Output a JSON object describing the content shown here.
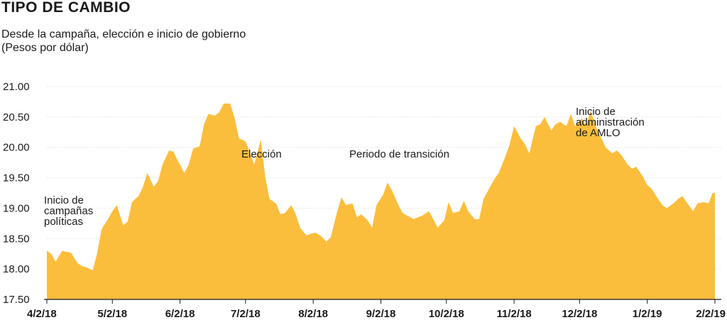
{
  "title": "TIPO DE CAMBIO",
  "subtitle_line1": "Desde la campaña, elección e inicio de gobierno",
  "subtitle_line2": "(Pesos por dólar)",
  "fill_color": "#fbbd3c",
  "chart_data": {
    "type": "area",
    "title": "TIPO DE CAMBIO",
    "subtitle": "Desde la campaña, elección e inicio de gobierno",
    "ylabel": "(Pesos por dólar)",
    "ylim": [
      17.5,
      21.0
    ],
    "grid": true,
    "y_ticks": [
      "21.00",
      "20.50",
      "20.00",
      "19.50",
      "19.00",
      "18.50",
      "18.00",
      "17.50"
    ],
    "x_ticks": [
      "4/2/18",
      "5/2/18",
      "6/2/18",
      "7/2/18",
      "8/2/18",
      "9/2/18",
      "10/2/18",
      "11/2/18",
      "12/2/18",
      "1/2/19",
      "2/2/19"
    ],
    "annotations": [
      {
        "lines": [
          "Inicio de",
          "campañas",
          "políticas"
        ],
        "x": "4/2/18"
      },
      {
        "lines": [
          "Elección"
        ],
        "x": "7/1/18"
      },
      {
        "lines": [
          "Periodo de transición"
        ],
        "x": "9/1/18"
      },
      {
        "lines": [
          "Inicio de",
          "administración",
          "de AMLO"
        ],
        "x": "12/1/18"
      }
    ],
    "x": [
      "2018-04-02",
      "2018-04-04",
      "2018-04-06",
      "2018-04-09",
      "2018-04-11",
      "2018-04-13",
      "2018-04-16",
      "2018-04-18",
      "2018-04-20",
      "2018-04-23",
      "2018-04-25",
      "2018-04-27",
      "2018-04-30",
      "2018-05-02",
      "2018-05-04",
      "2018-05-07",
      "2018-05-09",
      "2018-05-11",
      "2018-05-14",
      "2018-05-16",
      "2018-05-18",
      "2018-05-21",
      "2018-05-23",
      "2018-05-25",
      "2018-05-28",
      "2018-05-30",
      "2018-06-01",
      "2018-06-04",
      "2018-06-06",
      "2018-06-08",
      "2018-06-11",
      "2018-06-13",
      "2018-06-15",
      "2018-06-18",
      "2018-06-20",
      "2018-06-22",
      "2018-06-25",
      "2018-06-27",
      "2018-06-29",
      "2018-07-02",
      "2018-07-04",
      "2018-07-06",
      "2018-07-09",
      "2018-07-11",
      "2018-07-13",
      "2018-07-16",
      "2018-07-18",
      "2018-07-20",
      "2018-07-23",
      "2018-07-25",
      "2018-07-27",
      "2018-07-30",
      "2018-08-01",
      "2018-08-03",
      "2018-08-06",
      "2018-08-08",
      "2018-08-10",
      "2018-08-13",
      "2018-08-15",
      "2018-08-17",
      "2018-08-20",
      "2018-08-22",
      "2018-08-24",
      "2018-08-27",
      "2018-08-29",
      "2018-08-31",
      "2018-09-03",
      "2018-09-05",
      "2018-09-07",
      "2018-09-10",
      "2018-09-12",
      "2018-09-14",
      "2018-09-17",
      "2018-09-19",
      "2018-09-21",
      "2018-09-24",
      "2018-09-26",
      "2018-09-28",
      "2018-10-01",
      "2018-10-03",
      "2018-10-05",
      "2018-10-08",
      "2018-10-10",
      "2018-10-12",
      "2018-10-15",
      "2018-10-17",
      "2018-10-19",
      "2018-10-22",
      "2018-10-24",
      "2018-10-26",
      "2018-10-29",
      "2018-10-31",
      "2018-11-02",
      "2018-11-05",
      "2018-11-07",
      "2018-11-09",
      "2018-11-12",
      "2018-11-14",
      "2018-11-16",
      "2018-11-19",
      "2018-11-21",
      "2018-11-23",
      "2018-11-26",
      "2018-11-28",
      "2018-11-30",
      "2018-12-03",
      "2018-12-05",
      "2018-12-07",
      "2018-12-10",
      "2018-12-12",
      "2018-12-14",
      "2018-12-17",
      "2018-12-19",
      "2018-12-21",
      "2018-12-24",
      "2018-12-26",
      "2018-12-28",
      "2018-12-31",
      "2019-01-02",
      "2019-01-04",
      "2019-01-07",
      "2019-01-09",
      "2019-01-11",
      "2019-01-14",
      "2019-01-16",
      "2019-01-18",
      "2019-01-21",
      "2019-01-23",
      "2019-01-25",
      "2019-01-28",
      "2019-01-30",
      "2019-02-01"
    ],
    "series": [
      {
        "values": [
          18.3,
          18.25,
          18.12,
          18.3,
          18.28,
          18.27,
          18.1,
          18.05,
          18.03,
          17.98,
          18.25,
          18.65,
          18.82,
          18.95,
          19.05,
          18.72,
          18.78,
          19.1,
          19.2,
          19.35,
          19.58,
          19.35,
          19.45,
          19.72,
          19.95,
          19.93,
          19.78,
          19.58,
          19.72,
          19.98,
          20.02,
          20.38,
          20.55,
          20.52,
          20.58,
          20.72,
          20.72,
          20.48,
          20.15,
          20.1,
          19.92,
          19.72,
          20.13,
          19.52,
          19.15,
          19.08,
          18.9,
          18.92,
          19.05,
          18.9,
          18.68,
          18.55,
          18.58,
          18.6,
          18.53,
          18.45,
          18.52,
          18.95,
          19.18,
          19.05,
          19.08,
          18.85,
          18.9,
          18.8,
          18.68,
          19.05,
          19.22,
          19.42,
          19.3,
          19.05,
          18.92,
          18.88,
          18.82,
          18.85,
          18.88,
          18.95,
          18.82,
          18.68,
          18.8,
          19.1,
          18.92,
          18.95,
          19.12,
          18.95,
          18.82,
          18.82,
          19.15,
          19.35,
          19.48,
          19.58,
          19.85,
          20.05,
          20.35,
          20.15,
          20.05,
          19.9,
          20.35,
          20.38,
          20.5,
          20.28,
          20.38,
          20.42,
          20.35,
          20.55,
          20.35,
          20.48,
          20.35,
          20.6,
          20.3,
          20.15,
          20.0,
          19.9,
          19.95,
          19.88,
          19.72,
          19.65,
          19.68,
          19.52,
          19.38,
          19.32,
          19.15,
          19.05,
          19.0,
          19.08,
          19.15,
          19.2,
          19.05,
          18.95,
          19.08,
          19.1,
          19.08,
          19.25
        ]
      }
    ]
  }
}
